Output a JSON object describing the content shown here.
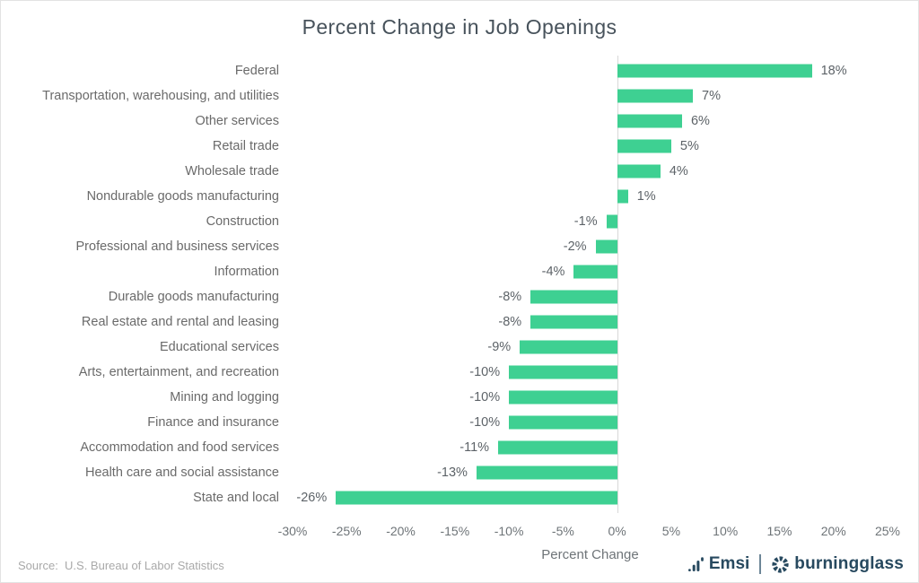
{
  "title": "Percent Change in Job Openings",
  "chart_data": {
    "type": "bar",
    "orientation": "horizontal",
    "title": "Percent Change in Job Openings",
    "xlabel": "Percent Change",
    "xlim": [
      -30,
      25
    ],
    "tick_values": [
      -30,
      -25,
      -20,
      -15,
      -10,
      -5,
      0,
      5,
      10,
      15,
      20,
      25
    ],
    "tick_labels": [
      "-30%",
      "-25%",
      "-20%",
      "-15%",
      "-10%",
      "-5%",
      "0%",
      "5%",
      "10%",
      "15%",
      "20%",
      "25%"
    ],
    "categories": [
      "Federal",
      "Transportation, warehousing, and utilities",
      "Other services",
      "Retail trade",
      "Wholesale trade",
      "Nondurable goods manufacturing",
      "Construction",
      "Professional and business services",
      "Information",
      "Durable goods manufacturing",
      "Real estate and rental and leasing",
      "Educational services",
      "Arts, entertainment, and recreation",
      "Mining and logging",
      "Finance and insurance",
      "Accommodation and food services",
      "Health care and social assistance",
      "State and local"
    ],
    "values": [
      18,
      7,
      6,
      5,
      4,
      1,
      -1,
      -2,
      -4,
      -8,
      -8,
      -9,
      -10,
      -10,
      -10,
      -11,
      -13,
      -26
    ],
    "value_labels": [
      "18%",
      "7%",
      "6%",
      "5%",
      "4%",
      "1%",
      "-1%",
      "-2%",
      "-4%",
      "-8%",
      "-8%",
      "-9%",
      "-10%",
      "-10%",
      "-10%",
      "-11%",
      "-13%",
      "-26%"
    ],
    "grid": false,
    "legend": null
  },
  "footer": {
    "source": "Source:  U.S. Bureau of Labor Statistics",
    "brands": {
      "emsi": "Emsi",
      "separator": "|",
      "burningglass": "burningglass"
    }
  },
  "colors": {
    "bar": "#3ed092",
    "title": "#47525b",
    "category_label": "#6a6a6a",
    "value_label": "#5d6368",
    "tick_label": "#6e7478",
    "axis_line": "#d8d8d8",
    "logo": "#27495f",
    "source_text": "#a9a9a9"
  }
}
